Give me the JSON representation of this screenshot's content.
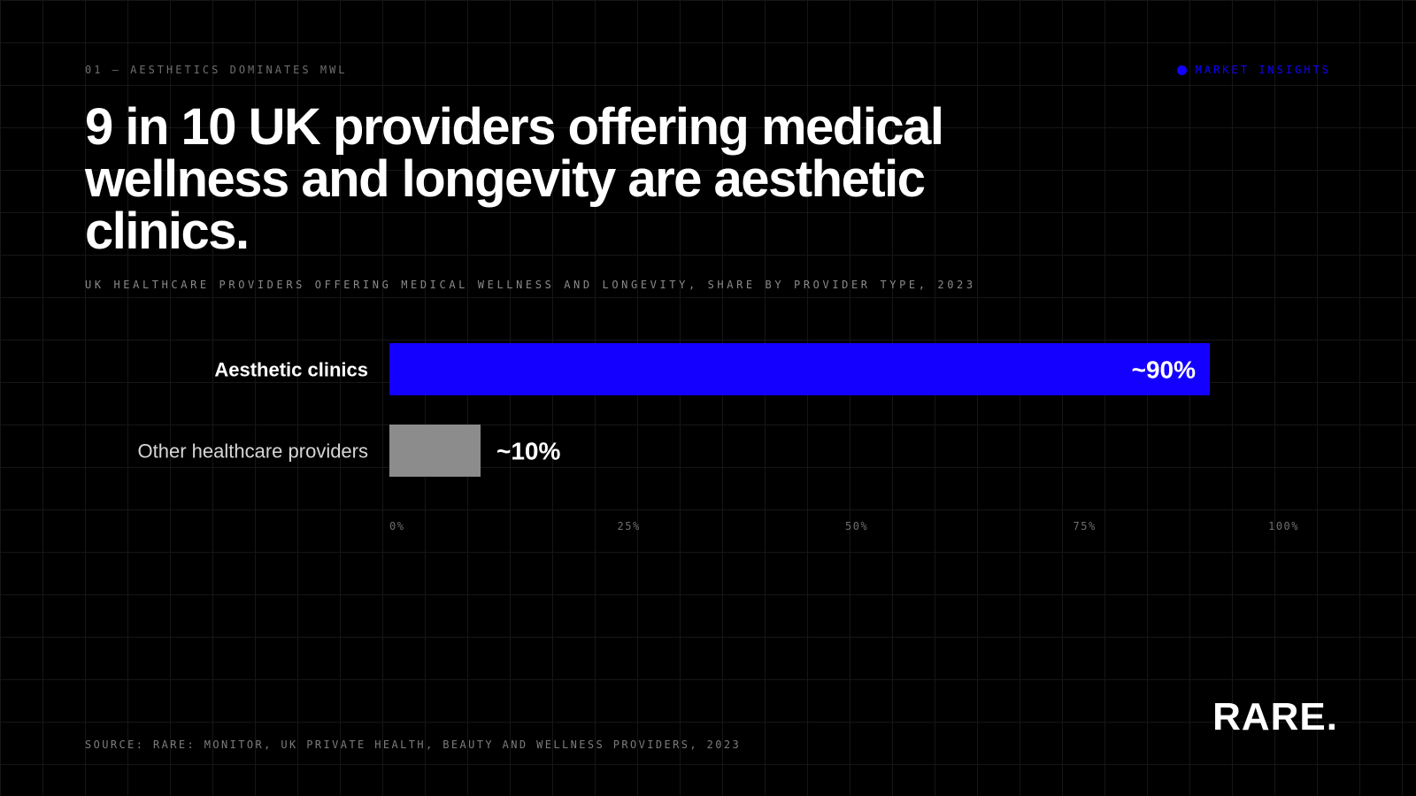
{
  "header": {
    "eyebrow": "01 — AESTHETICS DOMINATES MWL",
    "tag": "MARKET INSIGHTS",
    "headline": "9 in 10 UK providers offering medical wellness and longevity are aesthetic clinics.",
    "subtitle": "UK HEALTHCARE PROVIDERS OFFERING MEDICAL WELLNESS AND LONGEVITY, SHARE BY PROVIDER TYPE, 2023"
  },
  "colors": {
    "accent": "#1400ff",
    "muted_bar": "#8c8c8c",
    "background": "#000000",
    "grid": "#161616"
  },
  "chart_data": {
    "type": "bar",
    "orientation": "horizontal",
    "categories": [
      "Aesthetic clinics",
      "Other healthcare providers"
    ],
    "values": [
      90,
      10
    ],
    "data_labels": [
      "~90%",
      "~10%"
    ],
    "xlim": [
      0,
      100
    ],
    "x_ticks": [
      0,
      25,
      50,
      75,
      100
    ],
    "x_tick_labels": [
      "0%",
      "25%",
      "50%",
      "75%",
      "100%"
    ],
    "bar_colors": [
      "#1400ff",
      "#8c8c8c"
    ],
    "grid": true,
    "legend": "none"
  },
  "footer": {
    "source": "SOURCE: RARE: MONITOR, UK PRIVATE HEALTH, BEAUTY AND WELLNESS PROVIDERS, 2023",
    "logo": "RARE."
  }
}
